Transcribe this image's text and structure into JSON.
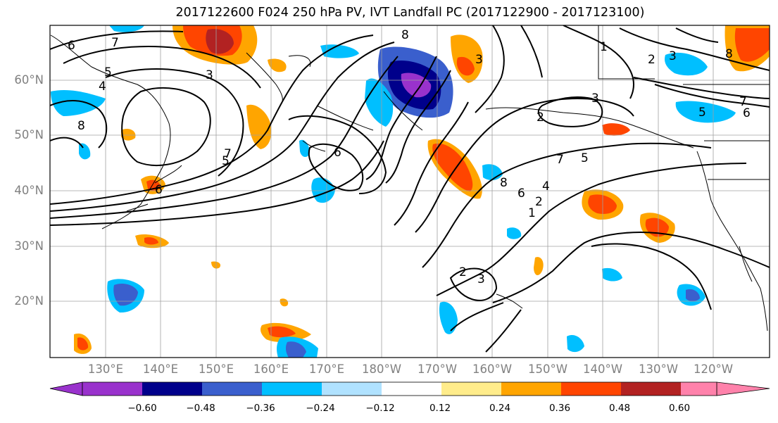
{
  "title": "2017122600 F024 250 hPa PV, IVT Landfall PC (2017122900 - 2017123100)",
  "lat_labels": [
    "60°N",
    "50°N",
    "40°N",
    "30°N",
    "20°N"
  ],
  "lon_labels": [
    "130°E",
    "140°E",
    "150°E",
    "160°E",
    "170°E",
    "180°W",
    "170°W",
    "160°W",
    "150°W",
    "140°W",
    "130°W",
    "120°W"
  ],
  "colorbar": {
    "tick_labels": [
      "−0.60",
      "−0.48",
      "−0.36",
      "−0.24",
      "−0.12",
      "0.12",
      "0.24",
      "0.36",
      "0.48",
      "0.60"
    ],
    "colors": [
      "#9932cc",
      "#00008b",
      "#3a5fcd",
      "#00bfff",
      "#b0e2ff",
      "#ffffff",
      "#ffec8b",
      "#ffa500",
      "#ff4500",
      "#b22222",
      "#ff82ab"
    ],
    "extend": "both"
  },
  "contour_labels": {
    "values": [
      "6",
      "7",
      "3",
      "5",
      "4",
      "8",
      "6",
      "1",
      "2",
      "3",
      "8",
      "3",
      "3",
      "2",
      "7",
      "5",
      "6",
      "8",
      "5",
      "6",
      "7",
      "8",
      "6",
      "4",
      "2",
      "1",
      "2",
      "3",
      "7",
      "5"
    ]
  }
}
